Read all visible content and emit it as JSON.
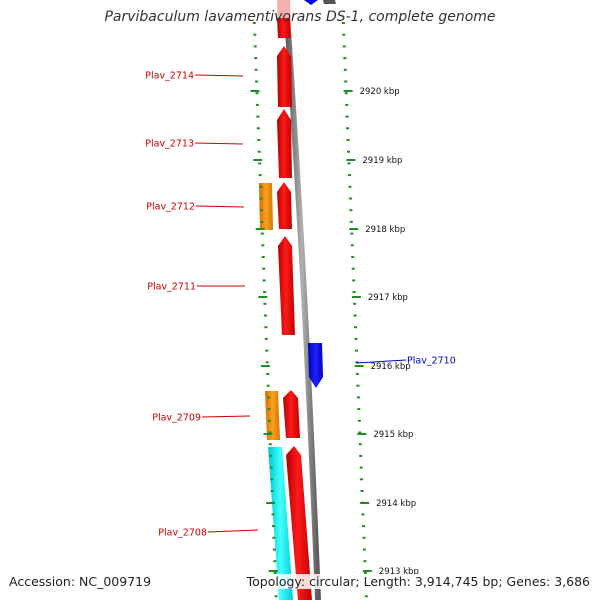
{
  "title": "Parvibaculum lavamentivorans DS-1, complete genome",
  "footer": {
    "accession": "Accession: NC_009719",
    "summary": "Topology: circular; Length: 3,914,745 bp; Genes: 3,686"
  },
  "ticks": [
    {
      "label": "2920 kbp"
    },
    {
      "label": "2919 kbp"
    },
    {
      "label": "2918 kbp"
    },
    {
      "label": "2917 kbp"
    },
    {
      "label": "2916 kbp"
    },
    {
      "label": "2915 kbp"
    },
    {
      "label": "2914 kbp"
    },
    {
      "label": "2913 kbp"
    }
  ],
  "genes": [
    {
      "label": "Plav_2714",
      "color": "#cc0000"
    },
    {
      "label": "Plav_2713",
      "color": "#cc0000"
    },
    {
      "label": "Plav_2712",
      "color": "#cc0000"
    },
    {
      "label": "Plav_2711",
      "color": "#cc0000"
    },
    {
      "label": "Plav_2710",
      "color": "#0000cc"
    },
    {
      "label": "Plav_2709",
      "color": "#cc0000"
    },
    {
      "label": "Plav_2708",
      "color": "#cc0000"
    }
  ],
  "colors": {
    "cds": "#ff0000",
    "cds_faded": "#f4a0a0",
    "rna": "#ff8c00",
    "cds_reverse": "#0000ff",
    "other": "#00e5ee",
    "backbone": "#808080",
    "tick": "#228b22"
  }
}
